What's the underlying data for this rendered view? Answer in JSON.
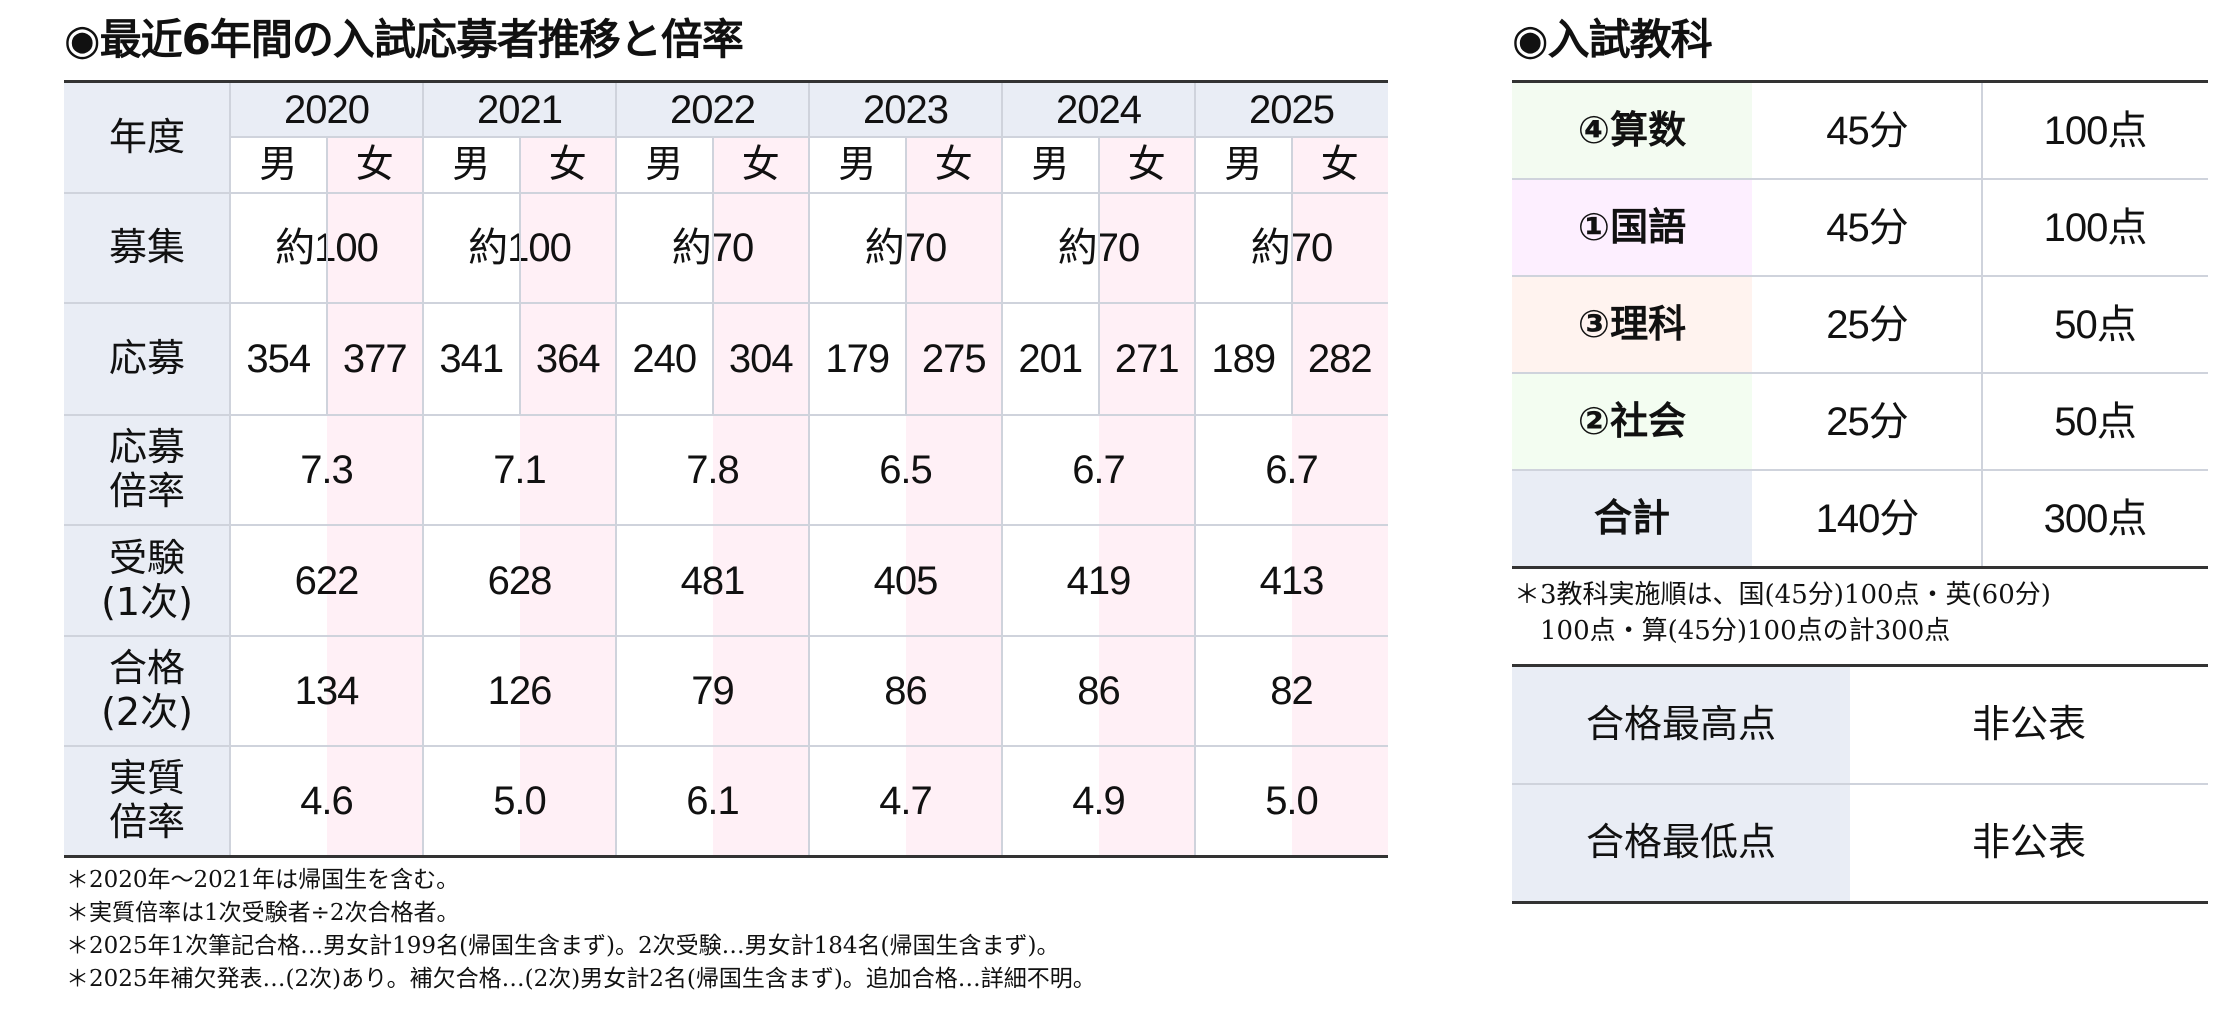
{
  "left": {
    "title": "◉最近6年間の入試応募者推移と倍率",
    "year_header": "年度",
    "male_label": "男",
    "female_label": "女",
    "years": [
      "2020",
      "2021",
      "2022",
      "2023",
      "2024",
      "2025"
    ],
    "row_labels": {
      "recruit": "募集",
      "applicants": "応募",
      "app_ratio": "応募\n倍率",
      "examinees": "受験\n(1次)",
      "passed": "合格\n(2次)",
      "real_ratio": "実質\n倍率"
    },
    "recruit": [
      "約100",
      "約100",
      "約70",
      "約70",
      "約70",
      "約70"
    ],
    "applicants": [
      [
        "354",
        "377"
      ],
      [
        "341",
        "364"
      ],
      [
        "240",
        "304"
      ],
      [
        "179",
        "275"
      ],
      [
        "201",
        "271"
      ],
      [
        "189",
        "282"
      ]
    ],
    "app_ratio": [
      "7.3",
      "7.1",
      "7.8",
      "6.5",
      "6.7",
      "6.7"
    ],
    "examinees": [
      "622",
      "628",
      "481",
      "405",
      "419",
      "413"
    ],
    "passed": [
      "134",
      "126",
      "79",
      "86",
      "86",
      "82"
    ],
    "real_ratio": [
      "4.6",
      "5.0",
      "6.1",
      "4.7",
      "4.9",
      "5.0"
    ],
    "notes": [
      "＊2020年～2021年は帰国生を含む。",
      "＊実質倍率は1次受験者÷2次合格者。",
      "＊2025年1次筆記合格…男女計199名(帰国生含まず)。2次受験…男女計184名(帰国生含まず)。",
      "＊2025年補欠発表…(2次)あり。補欠合格…(2次)男女計2名(帰国生含まず)。追加合格…詳細不明。"
    ]
  },
  "right": {
    "title": "◉入試教科",
    "subjects": [
      {
        "name": "④算数",
        "time": "45分",
        "points": "100点",
        "color": "#f3fbf1"
      },
      {
        "name": "①国語",
        "time": "45分",
        "points": "100点",
        "color": "#fdefff"
      },
      {
        "name": "③理科",
        "time": "25分",
        "points": "50点",
        "color": "#fff3ef"
      },
      {
        "name": "②社会",
        "time": "25分",
        "points": "50点",
        "color": "#f3fdf1"
      },
      {
        "name": "合計",
        "time": "140分",
        "points": "300点",
        "color": "#e9edf5"
      }
    ],
    "note": [
      "＊3教科実施順は、国(45分)100点・英(60分)",
      "　100点・算(45分)100点の計300点"
    ],
    "scores": [
      {
        "label": "合格最高点",
        "value": "非公表"
      },
      {
        "label": "合格最低点",
        "value": "非公表"
      }
    ]
  }
}
